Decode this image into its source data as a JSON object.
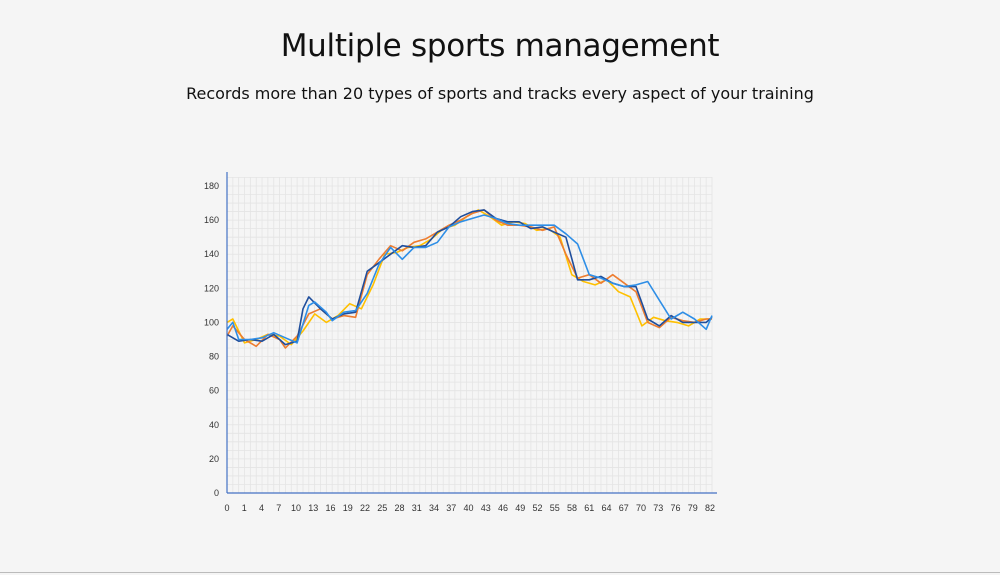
{
  "header": {
    "title": "Multiple sports management",
    "subtitle": "Records more than 20 types of sports and tracks every aspect of your training"
  },
  "chart_data": {
    "type": "line",
    "title": "",
    "xlabel": "",
    "ylabel": "",
    "ylim": [
      0,
      180
    ],
    "yticks": [
      0,
      20,
      40,
      60,
      80,
      100,
      120,
      140,
      160,
      180
    ],
    "xlim": [
      0,
      83
    ],
    "xtick_labels": [
      "0",
      "1",
      "4",
      "7",
      "10",
      "13",
      "16",
      "19",
      "22",
      "25",
      "28",
      "31",
      "34",
      "37",
      "40",
      "43",
      "46",
      "49",
      "52",
      "55",
      "58",
      "61",
      "64",
      "67",
      "70",
      "73",
      "76",
      "79",
      "82"
    ],
    "grid": true,
    "colors": {
      "axis": "#4472c4",
      "grid": "#e4e4e4",
      "series": [
        "#ffc000",
        "#ed7d31",
        "#1f4e9c",
        "#2e8ee6"
      ]
    },
    "series": [
      {
        "x": [
          0,
          1,
          3,
          5,
          7,
          9,
          11,
          13,
          15,
          17,
          19,
          21,
          23,
          25,
          27,
          29,
          31,
          33,
          35,
          37,
          39,
          41,
          43,
          45,
          47,
          49,
          51,
          53,
          55,
          57,
          59,
          61,
          63,
          65,
          67,
          69,
          71,
          73,
          75,
          77,
          79,
          81,
          83
        ],
        "values": [
          100,
          102,
          88,
          90,
          93,
          92,
          87,
          95,
          105,
          100,
          104,
          111,
          108,
          122,
          140,
          141,
          144,
          145,
          149,
          155,
          157,
          162,
          166,
          162,
          157,
          159,
          158,
          154,
          155,
          150,
          128,
          124,
          122,
          125,
          118,
          115,
          98,
          103,
          101,
          100,
          98,
          102,
          102
        ]
      },
      {
        "x": [
          0,
          1,
          3,
          5,
          7,
          9,
          10,
          12,
          14,
          16,
          18,
          20,
          22,
          24,
          26,
          28,
          30,
          32,
          34,
          36,
          38,
          40,
          42,
          44,
          46,
          48,
          50,
          52,
          54,
          56,
          58,
          60,
          62,
          64,
          66,
          68,
          70,
          72,
          74,
          76,
          78,
          80,
          82,
          83
        ],
        "values": [
          92,
          98,
          90,
          86,
          93,
          90,
          85,
          92,
          105,
          108,
          102,
          104,
          103,
          128,
          137,
          145,
          142,
          147,
          149,
          153,
          157,
          160,
          164,
          166,
          160,
          157,
          157,
          156,
          154,
          156,
          140,
          126,
          128,
          123,
          128,
          123,
          118,
          100,
          97,
          103,
          101,
          100,
          102,
          102
        ]
      },
      {
        "x": [
          0,
          2,
          4,
          6,
          8,
          10,
          12,
          13,
          14,
          16,
          18,
          20,
          22,
          24,
          26,
          28,
          30,
          32,
          34,
          36,
          38,
          40,
          42,
          44,
          46,
          48,
          50,
          52,
          54,
          56,
          58,
          60,
          62,
          64,
          66,
          68,
          70,
          72,
          74,
          76,
          78,
          80,
          82,
          83
        ],
        "values": [
          93,
          89,
          90,
          89,
          93,
          87,
          89,
          108,
          115,
          108,
          102,
          105,
          106,
          130,
          135,
          140,
          145,
          144,
          145,
          153,
          156,
          162,
          165,
          166,
          161,
          159,
          159,
          155,
          156,
          153,
          150,
          125,
          125,
          127,
          123,
          121,
          121,
          102,
          98,
          104,
          100,
          100,
          100,
          103
        ]
      },
      {
        "x": [
          0,
          1,
          2,
          4,
          6,
          8,
          10,
          12,
          14,
          15,
          17,
          18,
          20,
          22,
          24,
          26,
          28,
          30,
          32,
          34,
          36,
          38,
          40,
          42,
          44,
          46,
          48,
          50,
          52,
          54,
          56,
          58,
          60,
          62,
          64,
          66,
          68,
          70,
          72,
          74,
          76,
          78,
          80,
          82,
          83
        ],
        "values": [
          96,
          100,
          90,
          90,
          91,
          94,
          91,
          88,
          110,
          112,
          106,
          101,
          106,
          107,
          117,
          134,
          144,
          137,
          144,
          144,
          147,
          156,
          159,
          161,
          163,
          161,
          158,
          157,
          157,
          157,
          157,
          152,
          146,
          128,
          126,
          123,
          121,
          122,
          124,
          113,
          102,
          106,
          102,
          96,
          104
        ]
      }
    ]
  }
}
